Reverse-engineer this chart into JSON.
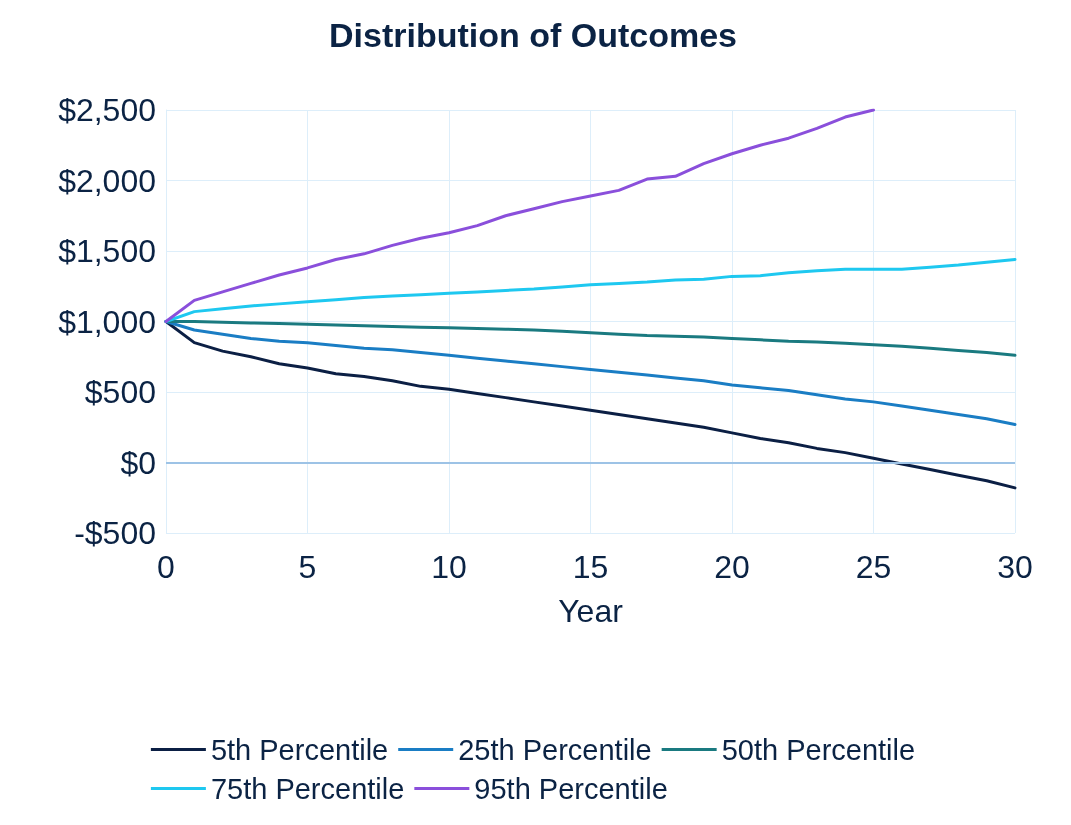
{
  "chart_data": {
    "type": "line",
    "title": "Distribution of Outcomes",
    "xlabel": "Year",
    "x": [
      0,
      1,
      2,
      3,
      4,
      5,
      6,
      7,
      8,
      9,
      10,
      11,
      12,
      13,
      14,
      15,
      16,
      17,
      18,
      19,
      20,
      21,
      22,
      23,
      24,
      25,
      26,
      27,
      28,
      29,
      30
    ],
    "xlim": [
      0,
      30
    ],
    "xticks": [
      0,
      5,
      10,
      15,
      20,
      25,
      30
    ],
    "ylim": [
      -500,
      2500
    ],
    "yticks": [
      {
        "value": -500,
        "label": "-$500"
      },
      {
        "value": 0,
        "label": "$0"
      },
      {
        "value": 500,
        "label": "$500"
      },
      {
        "value": 1000,
        "label": "$1,000"
      },
      {
        "value": 1500,
        "label": "$1,500"
      },
      {
        "value": 2000,
        "label": "$2,000"
      },
      {
        "value": 2500,
        "label": "$2,500"
      }
    ],
    "grid": true,
    "legend": "bottom",
    "marker": "none",
    "line_style": "solid",
    "ref_lines": [
      {
        "axis": "y",
        "value": 0,
        "color": "#9dc3e6"
      }
    ],
    "series": [
      {
        "name": "5th Percentile",
        "color": "#0b1f44",
        "values": [
          1000,
          850,
          790,
          750,
          700,
          670,
          630,
          610,
          580,
          540,
          520,
          490,
          460,
          430,
          400,
          370,
          340,
          310,
          280,
          250,
          210,
          170,
          140,
          100,
          70,
          30,
          -10,
          -50,
          -90,
          -130,
          -180
        ]
      },
      {
        "name": "25th Percentile",
        "color": "#1a7dc4",
        "values": [
          1000,
          940,
          910,
          880,
          860,
          850,
          830,
          810,
          800,
          780,
          760,
          740,
          720,
          700,
          680,
          660,
          640,
          620,
          600,
          580,
          550,
          530,
          510,
          480,
          450,
          430,
          400,
          370,
          340,
          310,
          270
        ]
      },
      {
        "name": "50th Percentile",
        "color": "#1a7a80",
        "values": [
          1000,
          1000,
          995,
          990,
          985,
          980,
          975,
          970,
          965,
          960,
          955,
          950,
          945,
          940,
          930,
          920,
          910,
          900,
          895,
          890,
          880,
          870,
          860,
          855,
          845,
          835,
          825,
          810,
          795,
          780,
          760
        ]
      },
      {
        "name": "75th Percentile",
        "color": "#1ec8f0",
        "values": [
          1000,
          1070,
          1090,
          1110,
          1125,
          1140,
          1155,
          1170,
          1180,
          1190,
          1200,
          1210,
          1220,
          1230,
          1245,
          1260,
          1270,
          1280,
          1295,
          1300,
          1320,
          1325,
          1345,
          1360,
          1370,
          1370,
          1370,
          1385,
          1400,
          1420,
          1440
        ]
      },
      {
        "name": "95th Percentile",
        "color": "#8a4fdb",
        "values": [
          1000,
          1150,
          1210,
          1270,
          1330,
          1380,
          1440,
          1480,
          1540,
          1590,
          1630,
          1680,
          1750,
          1800,
          1850,
          1890,
          1930,
          2010,
          2030,
          2120,
          2190,
          2250,
          2300,
          2370,
          2450,
          2500,
          null,
          null,
          null,
          null,
          null
        ]
      }
    ]
  }
}
